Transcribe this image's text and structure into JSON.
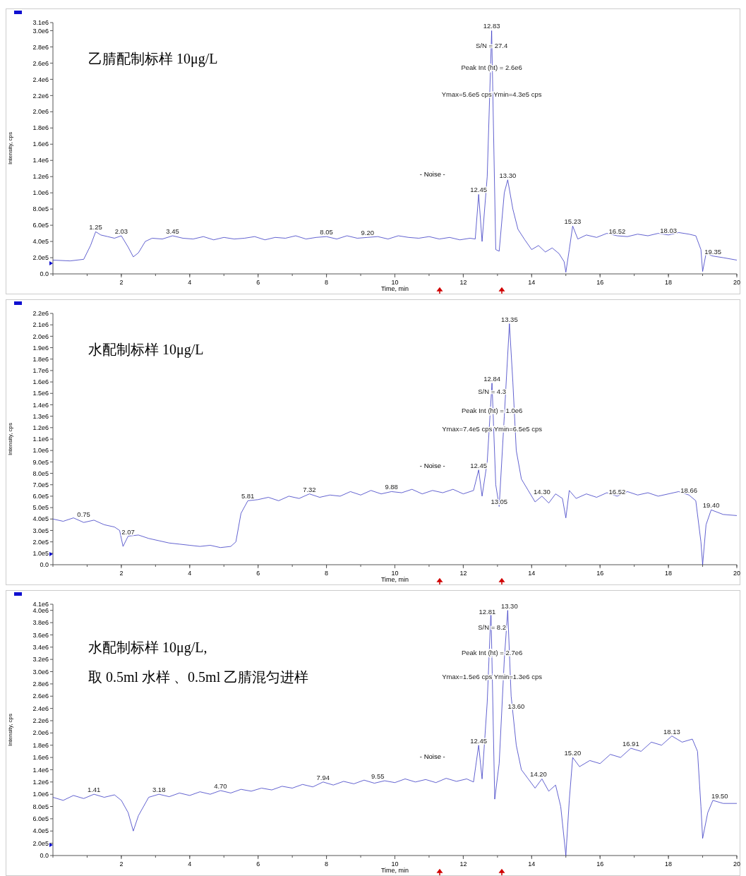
{
  "chart_data": [
    {
      "type": "line",
      "title": "乙腈配制标样 10μg/L",
      "xlabel": "Time, min",
      "ylabel": "Intensity, cps",
      "xlim": [
        0,
        20
      ],
      "xticks": [
        2,
        4,
        6,
        8,
        10,
        12,
        14,
        16,
        18,
        20
      ],
      "ylim": [
        0,
        3100000
      ],
      "yticks": [
        {
          "value": 0,
          "label": "0.0"
        },
        {
          "value": 200000,
          "label": "2.0e5"
        },
        {
          "value": 400000,
          "label": "4.0e5"
        },
        {
          "value": 600000,
          "label": "6.0e5"
        },
        {
          "value": 800000,
          "label": "8.0e5"
        },
        {
          "value": 1000000,
          "label": "1.0e6"
        },
        {
          "value": 1200000,
          "label": "1.2e6"
        },
        {
          "value": 1400000,
          "label": "1.4e6"
        },
        {
          "value": 1600000,
          "label": "1.6e6"
        },
        {
          "value": 1800000,
          "label": "1.8e6"
        },
        {
          "value": 2000000,
          "label": "2.0e6"
        },
        {
          "value": 2200000,
          "label": "2.2e6"
        },
        {
          "value": 2400000,
          "label": "2.4e6"
        },
        {
          "value": 2600000,
          "label": "2.6e6"
        },
        {
          "value": 2800000,
          "label": "2.8e6"
        },
        {
          "value": 3000000,
          "label": "3.0e6"
        },
        {
          "value": 3100000,
          "label": "3.1e6"
        }
      ],
      "grid": false,
      "marker": "none",
      "series": [
        {
          "color": "#3b3bc4",
          "x": [
            0,
            0.5,
            0.9,
            1.1,
            1.25,
            1.4,
            1.6,
            1.8,
            2.0,
            2.2,
            2.35,
            2.5,
            2.7,
            2.9,
            3.2,
            3.5,
            3.8,
            4.1,
            4.4,
            4.7,
            5.0,
            5.3,
            5.6,
            5.9,
            6.2,
            6.5,
            6.8,
            7.1,
            7.4,
            7.7,
            8.0,
            8.3,
            8.6,
            8.9,
            9.2,
            9.5,
            9.8,
            10.1,
            10.4,
            10.7,
            11.0,
            11.3,
            11.6,
            11.9,
            12.2,
            12.35,
            12.45,
            12.55,
            12.7,
            12.83,
            12.95,
            13.05,
            13.2,
            13.3,
            13.45,
            13.6,
            13.8,
            14.0,
            14.2,
            14.4,
            14.6,
            14.8,
            14.95,
            15.0,
            15.1,
            15.2,
            15.35,
            15.6,
            15.9,
            16.2,
            16.5,
            16.8,
            17.1,
            17.4,
            17.7,
            18.0,
            18.3,
            18.6,
            18.8,
            18.95,
            19.0,
            19.1,
            19.3,
            19.6,
            20
          ],
          "values": [
            170000,
            160000,
            180000,
            350000,
            520000,
            480000,
            460000,
            440000,
            470000,
            330000,
            210000,
            260000,
            400000,
            440000,
            430000,
            470000,
            440000,
            430000,
            460000,
            420000,
            450000,
            430000,
            440000,
            460000,
            420000,
            450000,
            440000,
            470000,
            430000,
            450000,
            460000,
            430000,
            470000,
            440000,
            450000,
            460000,
            430000,
            470000,
            450000,
            440000,
            460000,
            430000,
            450000,
            420000,
            440000,
            430000,
            980000,
            400000,
            1200000,
            3000000,
            300000,
            280000,
            1000000,
            1160000,
            800000,
            550000,
            420000,
            300000,
            350000,
            270000,
            320000,
            250000,
            150000,
            20000,
            300000,
            590000,
            430000,
            480000,
            450000,
            500000,
            470000,
            460000,
            490000,
            470000,
            500000,
            480000,
            510000,
            490000,
            470000,
            300000,
            30000,
            250000,
            220000,
            200000,
            170000
          ]
        }
      ],
      "annotations": [
        {
          "text": "12.83",
          "x": 12.83,
          "y": 3000000
        },
        {
          "text": "S/N = 27.4",
          "x": 12.83,
          "y": 2760000
        },
        {
          "text": "Peak Int (ht) = 2.6e6",
          "x": 12.83,
          "y": 2490000
        },
        {
          "text": "Ymax=5.6e5 cps  Ymin=4.3e5 cps",
          "x": 12.83,
          "y": 2160000
        },
        "- Noise -",
        {
          "text": "12.45",
          "x": 12.45,
          "y": 980000
        },
        {
          "text": "13.30",
          "x": 13.3,
          "y": 1160000
        },
        {
          "text": "1.25",
          "x": 1.25,
          "y": 520000
        },
        {
          "text": "2.03",
          "x": 2.0,
          "y": 470000
        },
        {
          "text": "3.45",
          "x": 3.5,
          "y": 470000
        },
        {
          "text": "8.05",
          "x": 8.0,
          "y": 460000
        },
        {
          "text": "9.20",
          "x": 9.2,
          "y": 450000
        },
        {
          "text": "15.23",
          "x": 15.2,
          "y": 590000
        },
        {
          "text": "16.52",
          "x": 16.5,
          "y": 470000
        },
        {
          "text": "18.03",
          "x": 18.0,
          "y": 480000
        },
        {
          "text": "19.35",
          "x": 19.3,
          "y": 220000
        }
      ]
    },
    {
      "type": "line",
      "title": "水配制标样 10μg/L",
      "xlabel": "Time, min",
      "ylabel": "Intensity, cps",
      "xlim": [
        0,
        20
      ],
      "xticks": [
        2,
        4,
        6,
        8,
        10,
        12,
        14,
        16,
        18,
        20
      ],
      "ylim": [
        0,
        2200000
      ],
      "yticks": [
        {
          "value": 0,
          "label": "0.0"
        },
        {
          "value": 100000,
          "label": "1.0e5"
        },
        {
          "value": 200000,
          "label": "2.0e5"
        },
        {
          "value": 300000,
          "label": "3.0e5"
        },
        {
          "value": 400000,
          "label": "4.0e5"
        },
        {
          "value": 500000,
          "label": "5.0e5"
        },
        {
          "value": 600000,
          "label": "6.0e5"
        },
        {
          "value": 700000,
          "label": "7.0e5"
        },
        {
          "value": 800000,
          "label": "8.0e5"
        },
        {
          "value": 900000,
          "label": "9.0e5"
        },
        {
          "value": 1000000,
          "label": "1.0e6"
        },
        {
          "value": 1100000,
          "label": "1.1e6"
        },
        {
          "value": 1200000,
          "label": "1.2e6"
        },
        {
          "value": 1300000,
          "label": "1.3e6"
        },
        {
          "value": 1400000,
          "label": "1.4e6"
        },
        {
          "value": 1500000,
          "label": "1.5e6"
        },
        {
          "value": 1600000,
          "label": "1.6e6"
        },
        {
          "value": 1700000,
          "label": "1.7e6"
        },
        {
          "value": 1800000,
          "label": "1.8e6"
        },
        {
          "value": 1900000,
          "label": "1.9e6"
        },
        {
          "value": 2000000,
          "label": "2.0e6"
        },
        {
          "value": 2100000,
          "label": "2.1e6"
        },
        {
          "value": 2200000,
          "label": "2.2e6"
        }
      ],
      "grid": false,
      "marker": "none",
      "series": [
        {
          "color": "#3b3bc4",
          "x": [
            0,
            0.3,
            0.6,
            0.9,
            1.2,
            1.5,
            1.8,
            1.95,
            2.05,
            2.2,
            2.5,
            2.8,
            3.1,
            3.4,
            3.7,
            4.0,
            4.3,
            4.6,
            4.9,
            5.2,
            5.35,
            5.5,
            5.7,
            6.0,
            6.3,
            6.6,
            6.9,
            7.2,
            7.5,
            7.8,
            8.1,
            8.4,
            8.7,
            9.0,
            9.3,
            9.6,
            9.9,
            10.2,
            10.5,
            10.8,
            11.1,
            11.4,
            11.7,
            12.0,
            12.3,
            12.45,
            12.55,
            12.7,
            12.84,
            12.95,
            13.05,
            13.2,
            13.35,
            13.45,
            13.55,
            13.7,
            13.9,
            14.1,
            14.3,
            14.5,
            14.7,
            14.9,
            15.0,
            15.1,
            15.3,
            15.6,
            15.9,
            16.2,
            16.5,
            16.8,
            17.1,
            17.4,
            17.7,
            18.0,
            18.3,
            18.6,
            18.8,
            18.95,
            19.0,
            19.1,
            19.25,
            19.6,
            20
          ],
          "values": [
            400000,
            380000,
            410000,
            370000,
            390000,
            350000,
            330000,
            300000,
            160000,
            250000,
            260000,
            230000,
            210000,
            190000,
            180000,
            170000,
            160000,
            170000,
            150000,
            160000,
            200000,
            450000,
            560000,
            570000,
            590000,
            560000,
            600000,
            580000,
            620000,
            590000,
            610000,
            600000,
            640000,
            610000,
            650000,
            620000,
            640000,
            630000,
            660000,
            620000,
            650000,
            630000,
            660000,
            620000,
            650000,
            830000,
            600000,
            900000,
            1590000,
            700000,
            510000,
            1300000,
            2110000,
            1600000,
            1000000,
            750000,
            650000,
            550000,
            600000,
            540000,
            620000,
            580000,
            410000,
            650000,
            580000,
            620000,
            590000,
            630000,
            600000,
            640000,
            610000,
            630000,
            600000,
            620000,
            640000,
            610000,
            560000,
            200000,
            0,
            350000,
            480000,
            440000,
            430000
          ]
        }
      ],
      "annotations": [
        {
          "text": "13.35",
          "x": 13.35,
          "y": 2110000
        },
        {
          "text": "12.84",
          "x": 12.84,
          "y": 1590000
        },
        {
          "text": "S/N = 4.3",
          "x": 12.84,
          "y": 1480000
        },
        {
          "text": "Peak Int (ht) = 1.0e6",
          "x": 12.84,
          "y": 1310000
        },
        {
          "text": "Ymax=7.4e5 cps  Ymin=6.5e5 cps",
          "x": 12.84,
          "y": 1150000
        },
        "- Noise -",
        {
          "text": "12.45",
          "x": 12.45,
          "y": 830000
        },
        {
          "text": "13.05",
          "x": 13.05,
          "y": 510000
        },
        {
          "text": "0.75",
          "x": 0.9,
          "y": 400000
        },
        {
          "text": "2.07",
          "x": 2.2,
          "y": 250000
        },
        {
          "text": "5.81",
          "x": 5.7,
          "y": 560000
        },
        {
          "text": "7.32",
          "x": 7.5,
          "y": 620000
        },
        {
          "text": "9.88",
          "x": 9.9,
          "y": 640000
        },
        {
          "text": "14.30",
          "x": 14.3,
          "y": 600000
        },
        {
          "text": "16.52",
          "x": 16.5,
          "y": 600000
        },
        {
          "text": "18.66",
          "x": 18.6,
          "y": 610000
        },
        {
          "text": "19.40",
          "x": 19.25,
          "y": 480000
        }
      ]
    },
    {
      "type": "line",
      "title": "水配制标样 10μg/L,",
      "subtitle": "取 0.5ml 水样 、0.5ml 乙腈混匀进样",
      "xlabel": "Time, min",
      "ylabel": "Intensity, cps",
      "xlim": [
        0,
        20
      ],
      "xticks": [
        2,
        4,
        6,
        8,
        10,
        12,
        14,
        16,
        18,
        20
      ],
      "ylim": [
        0,
        4100000
      ],
      "yticks": [
        {
          "value": 0,
          "label": "0.0"
        },
        {
          "value": 200000,
          "label": "2.0e5"
        },
        {
          "value": 400000,
          "label": "4.0e5"
        },
        {
          "value": 600000,
          "label": "6.0e5"
        },
        {
          "value": 800000,
          "label": "8.0e5"
        },
        {
          "value": 1000000,
          "label": "1.0e6"
        },
        {
          "value": 1200000,
          "label": "1.2e6"
        },
        {
          "value": 1400000,
          "label": "1.4e6"
        },
        {
          "value": 1600000,
          "label": "1.6e6"
        },
        {
          "value": 1800000,
          "label": "1.8e6"
        },
        {
          "value": 2000000,
          "label": "2.0e6"
        },
        {
          "value": 2200000,
          "label": "2.2e6"
        },
        {
          "value": 2400000,
          "label": "2.4e6"
        },
        {
          "value": 2600000,
          "label": "2.6e6"
        },
        {
          "value": 2800000,
          "label": "2.8e6"
        },
        {
          "value": 3000000,
          "label": "3.0e6"
        },
        {
          "value": 3200000,
          "label": "3.2e6"
        },
        {
          "value": 3400000,
          "label": "3.4e6"
        },
        {
          "value": 3600000,
          "label": "3.6e6"
        },
        {
          "value": 3800000,
          "label": "3.8e6"
        },
        {
          "value": 4000000,
          "label": "4.0e6"
        },
        {
          "value": 4100000,
          "label": "4.1e6"
        }
      ],
      "grid": false,
      "marker": "none",
      "series": [
        {
          "color": "#3b3bc4",
          "x": [
            0,
            0.3,
            0.6,
            0.9,
            1.2,
            1.5,
            1.8,
            2.0,
            2.2,
            2.35,
            2.5,
            2.8,
            3.1,
            3.4,
            3.7,
            4.0,
            4.3,
            4.6,
            4.9,
            5.2,
            5.5,
            5.8,
            6.1,
            6.4,
            6.7,
            7.0,
            7.3,
            7.6,
            7.9,
            8.2,
            8.5,
            8.8,
            9.1,
            9.4,
            9.7,
            10.0,
            10.3,
            10.6,
            10.9,
            11.2,
            11.5,
            11.8,
            12.1,
            12.3,
            12.45,
            12.55,
            12.7,
            12.81,
            12.92,
            13.05,
            13.2,
            13.3,
            13.4,
            13.55,
            13.7,
            13.9,
            14.1,
            14.3,
            14.5,
            14.7,
            14.85,
            15.0,
            15.1,
            15.2,
            15.4,
            15.7,
            16.0,
            16.3,
            16.6,
            16.9,
            17.2,
            17.5,
            17.8,
            18.1,
            18.4,
            18.7,
            18.85,
            18.95,
            19.0,
            19.15,
            19.3,
            19.6,
            20
          ],
          "values": [
            950000,
            900000,
            980000,
            930000,
            1000000,
            950000,
            990000,
            900000,
            700000,
            400000,
            650000,
            950000,
            1000000,
            960000,
            1020000,
            980000,
            1040000,
            1000000,
            1060000,
            1020000,
            1080000,
            1050000,
            1100000,
            1070000,
            1130000,
            1100000,
            1160000,
            1120000,
            1200000,
            1150000,
            1210000,
            1170000,
            1230000,
            1180000,
            1220000,
            1190000,
            1250000,
            1200000,
            1240000,
            1190000,
            1260000,
            1210000,
            1250000,
            1200000,
            1800000,
            1250000,
            2500000,
            4000000,
            920000,
            1500000,
            3200000,
            4000000,
            2600000,
            1800000,
            1400000,
            1250000,
            1100000,
            1250000,
            1050000,
            1150000,
            800000,
            0,
            900000,
            1600000,
            1450000,
            1550000,
            1500000,
            1650000,
            1600000,
            1750000,
            1700000,
            1850000,
            1800000,
            1950000,
            1850000,
            1900000,
            1700000,
            800000,
            280000,
            700000,
            900000,
            850000,
            850000
          ]
        }
      ],
      "annotations": [
        {
          "text": "12.81",
          "x": 12.7,
          "y": 3900000
        },
        {
          "text": "13.30",
          "x": 13.35,
          "y": 4000000
        },
        {
          "text": "S/N = 8.2",
          "x": 12.84,
          "y": 3650000
        },
        {
          "text": "Peak Int (ht) = 2.7e6",
          "x": 12.84,
          "y": 3240000
        },
        {
          "text": "Ymax=1.5e6 cps  Ymin=1.3e6 cps",
          "x": 12.84,
          "y": 2840000
        },
        "- Noise -",
        {
          "text": "12.45",
          "x": 12.45,
          "y": 1800000
        },
        {
          "text": "13.60",
          "x": 13.55,
          "y": 2360000
        },
        {
          "text": "1.41",
          "x": 1.2,
          "y": 1000000
        },
        {
          "text": "3.18",
          "x": 3.1,
          "y": 1000000
        },
        {
          "text": "4.70",
          "x": 4.9,
          "y": 1060000
        },
        {
          "text": "7.94",
          "x": 7.9,
          "y": 1200000
        },
        {
          "text": "9.55",
          "x": 9.5,
          "y": 1220000
        },
        {
          "text": "14.20",
          "x": 14.2,
          "y": 1250000
        },
        {
          "text": "15.20",
          "x": 15.2,
          "y": 1600000
        },
        {
          "text": "16.91",
          "x": 16.9,
          "y": 1750000
        },
        {
          "text": "18.13",
          "x": 18.1,
          "y": 1950000
        },
        {
          "text": "19.50",
          "x": 19.5,
          "y": 900000
        }
      ]
    }
  ]
}
